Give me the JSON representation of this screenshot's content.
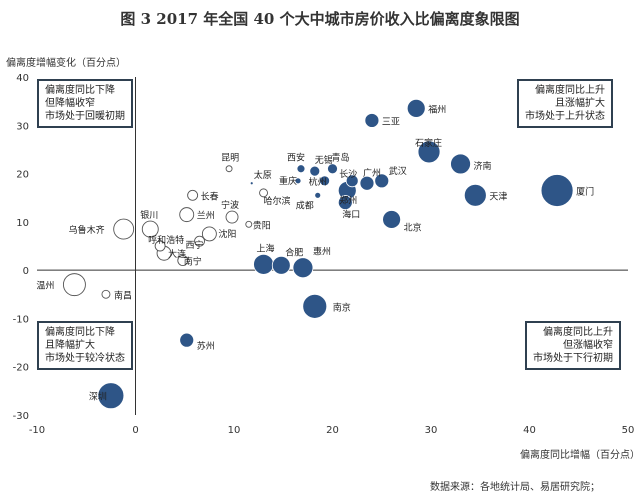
{
  "figure_title": "图 3   2017 年全国 40 个大中城市房价收入比偏离度象限图",
  "source": "数据来源：各地统计局、易居研究院；",
  "colors": {
    "filled": "#2e5587",
    "hollow_stroke": "#555555",
    "axis": "#333333"
  },
  "quadrants": {
    "top_left": [
      "偏离度同比下降",
      "但降幅收窄",
      "市场处于回暖初期"
    ],
    "top_right": [
      "偏离度同比上升",
      "且涨幅扩大",
      "市场处于上升状态"
    ],
    "bottom_left": [
      "偏离度同比下降",
      "且降幅扩大",
      "市场处于较冷状态"
    ],
    "bottom_right": [
      "偏离度同比上升",
      "但涨幅收窄",
      "市场处于下行初期"
    ]
  },
  "chart_data": {
    "type": "scatter",
    "subtype": "bubble",
    "title": "图 3   2017 年全国 40 个大中城市房价收入比偏离度象限图",
    "xlabel": "偏离度同比增幅（百分点）",
    "ylabel": "偏离度增幅变化（百分点）",
    "xlim": [
      -10,
      50
    ],
    "ylim": [
      -30,
      40
    ],
    "xticks": [
      -10,
      0,
      10,
      20,
      30,
      40,
      50
    ],
    "yticks": [
      -30,
      -20,
      -10,
      0,
      10,
      20,
      30,
      40
    ],
    "grid": false,
    "points": [
      {
        "name": "福州",
        "x": 28.5,
        "y": 33.5,
        "size": 9,
        "filled": true
      },
      {
        "name": "三亚",
        "x": 24,
        "y": 31,
        "size": 7,
        "filled": true
      },
      {
        "name": "石家庄",
        "x": 29.8,
        "y": 24.5,
        "size": 11,
        "filled": true
      },
      {
        "name": "济南",
        "x": 33,
        "y": 22,
        "size": 10,
        "filled": true
      },
      {
        "name": "天津",
        "x": 34.5,
        "y": 15.5,
        "size": 11,
        "filled": true
      },
      {
        "name": "厦门",
        "x": 42.8,
        "y": 16.5,
        "size": 16,
        "filled": true
      },
      {
        "name": "武汉",
        "x": 25,
        "y": 18.5,
        "size": 7,
        "filled": true
      },
      {
        "name": "广州",
        "x": 23.5,
        "y": 18,
        "size": 7,
        "filled": true
      },
      {
        "name": "长沙",
        "x": 22,
        "y": 18.5,
        "size": 6,
        "filled": true
      },
      {
        "name": "郑州",
        "x": 21.5,
        "y": 16.5,
        "size": 9,
        "filled": true
      },
      {
        "name": "北京",
        "x": 26,
        "y": 10.5,
        "size": 9,
        "filled": true
      },
      {
        "name": "海口",
        "x": 21.3,
        "y": 14,
        "size": 7,
        "filled": true
      },
      {
        "name": "青岛",
        "x": 20,
        "y": 21,
        "size": 5,
        "filled": true
      },
      {
        "name": "西安",
        "x": 16.8,
        "y": 21,
        "size": 4,
        "filled": true
      },
      {
        "name": "无锡",
        "x": 18.2,
        "y": 20.5,
        "size": 5,
        "filled": true
      },
      {
        "name": "杭州",
        "x": 19.2,
        "y": 18.5,
        "size": 5,
        "filled": true
      },
      {
        "name": "重庆",
        "x": 16.5,
        "y": 18.5,
        "size": 3,
        "filled": true
      },
      {
        "name": "成都",
        "x": 18.5,
        "y": 15.5,
        "size": 3,
        "filled": true
      },
      {
        "name": "太原",
        "x": 11.8,
        "y": 18,
        "size": 1.5,
        "filled": true
      },
      {
        "name": "上海",
        "x": 13,
        "y": 1.2,
        "size": 10,
        "filled": true
      },
      {
        "name": "合肥",
        "x": 14.8,
        "y": 1,
        "size": 9,
        "filled": true
      },
      {
        "name": "惠州",
        "x": 17,
        "y": 0.5,
        "size": 10,
        "filled": true
      },
      {
        "name": "南京",
        "x": 18.2,
        "y": -7.5,
        "size": 12,
        "filled": true
      },
      {
        "name": "苏州",
        "x": 5.2,
        "y": -14.5,
        "size": 7,
        "filled": true
      },
      {
        "name": "深圳",
        "x": -2.5,
        "y": -26,
        "size": 13,
        "filled": true
      },
      {
        "name": "昆明",
        "x": 9.5,
        "y": 21,
        "size": 3,
        "filled": false
      },
      {
        "name": "哈尔滨",
        "x": 13,
        "y": 16,
        "size": 4,
        "filled": false
      },
      {
        "name": "长春",
        "x": 5.8,
        "y": 15.5,
        "size": 5,
        "filled": false
      },
      {
        "name": "宁波",
        "x": 9.8,
        "y": 11,
        "size": 6,
        "filled": false
      },
      {
        "name": "兰州",
        "x": 5.2,
        "y": 11.5,
        "size": 7,
        "filled": false
      },
      {
        "name": "贵阳",
        "x": 11.5,
        "y": 9.5,
        "size": 3,
        "filled": false
      },
      {
        "name": "银川",
        "x": 1.5,
        "y": 8.5,
        "size": 8,
        "filled": false
      },
      {
        "name": "乌鲁木齐",
        "x": -1.2,
        "y": 8.5,
        "size": 10,
        "filled": false
      },
      {
        "name": "沈阳",
        "x": 7.5,
        "y": 7.5,
        "size": 7,
        "filled": false
      },
      {
        "name": "呼和浩特",
        "x": 2.5,
        "y": 5,
        "size": 5,
        "filled": false
      },
      {
        "name": "西宁",
        "x": 6.5,
        "y": 6,
        "size": 5,
        "filled": false
      },
      {
        "name": "大连",
        "x": 2.9,
        "y": 3.5,
        "size": 7,
        "filled": false
      },
      {
        "name": "南宁",
        "x": 4.8,
        "y": 2,
        "size": 5,
        "filled": false
      },
      {
        "name": "温州",
        "x": -6.2,
        "y": -3,
        "size": 11,
        "filled": false
      },
      {
        "name": "南昌",
        "x": -3,
        "y": -5,
        "size": 4,
        "filled": false
      }
    ]
  }
}
